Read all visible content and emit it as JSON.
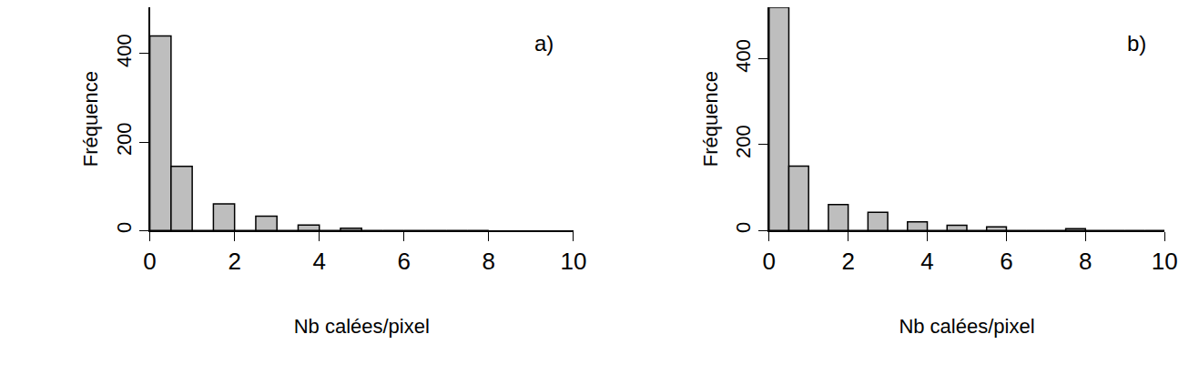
{
  "chart_data": [
    {
      "type": "histogram",
      "annotation": "a)",
      "x_label": "Nb calées/pixel",
      "y_label": "Fréquence",
      "bins": [
        0,
        0.5,
        1,
        1.5,
        2,
        2.5,
        3,
        3.5,
        4,
        4.5,
        5,
        5.5,
        6,
        6.5,
        7,
        7.5,
        8
      ],
      "values": [
        440,
        145,
        0,
        60,
        0,
        32,
        0,
        12,
        0,
        5,
        0,
        0,
        0,
        0,
        0,
        0
      ],
      "color": "#bebebe",
      "xlim": [
        0,
        10
      ],
      "xticks": [
        0,
        2,
        4,
        6,
        8,
        10
      ],
      "ylim": [
        0,
        505
      ],
      "yticks": [
        0,
        200,
        400
      ],
      "grid": false
    },
    {
      "type": "histogram",
      "annotation": "b)",
      "x_label": "Nb calées/pixel",
      "y_label": "Fréquence",
      "bins": [
        0,
        0.5,
        1,
        1.5,
        2,
        2.5,
        3,
        3.5,
        4,
        4.5,
        5,
        5.5,
        6,
        6.5,
        7,
        7.5,
        8,
        8.5,
        9,
        9.5,
        10
      ],
      "values": [
        520,
        150,
        0,
        60,
        0,
        42,
        0,
        20,
        0,
        12,
        0,
        8,
        0,
        0,
        0,
        4,
        0,
        0,
        0,
        0
      ],
      "color": "#bebebe",
      "xlim": [
        0,
        10
      ],
      "xticks": [
        0,
        2,
        4,
        6,
        8,
        10
      ],
      "ylim": [
        0,
        520
      ],
      "yticks": [
        0,
        200,
        400
      ],
      "grid": false
    }
  ]
}
